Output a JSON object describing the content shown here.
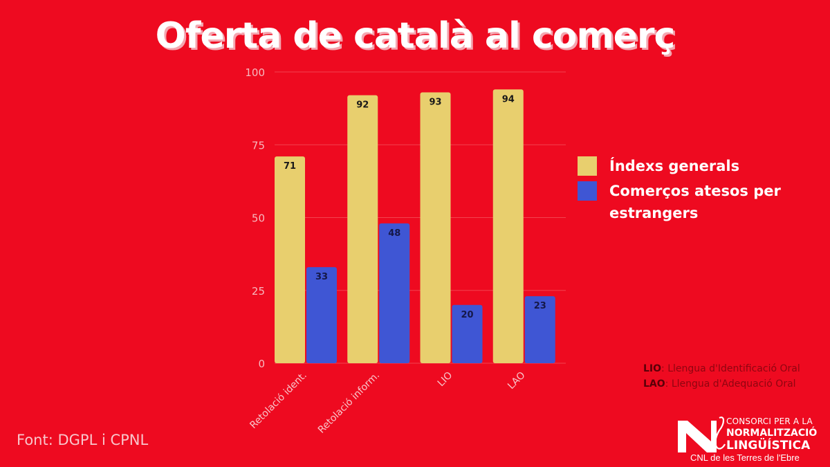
{
  "title": "Oferta de català al comerç",
  "colors": {
    "background": "#ee0a20",
    "series_1": "#e8cf6e",
    "series_2": "#3f56d4"
  },
  "chart_data": {
    "type": "bar",
    "title": "Oferta de català al comerç",
    "categories": [
      "Retolació ident.",
      "Retolació inform.",
      "LIO",
      "LAO"
    ],
    "series": [
      {
        "name": "Índexs generals",
        "values": [
          71,
          92,
          93,
          94
        ]
      },
      {
        "name": "Comerços atesos per estrangers",
        "values": [
          33,
          48,
          20,
          23
        ]
      }
    ],
    "xlabel": "",
    "ylabel": "",
    "ylim": [
      0,
      100
    ],
    "yticks": [
      0,
      25,
      50,
      75,
      100
    ],
    "grid": true,
    "legend_position": "right",
    "data_labels": true
  },
  "legend": [
    {
      "label": "Índexs generals"
    },
    {
      "label": "Comerços atesos per estrangers"
    }
  ],
  "footnotes": [
    {
      "abbr": "LIO",
      "text": ": Llengua d'Identificació Oral"
    },
    {
      "abbr": "LAO",
      "text": ": Llengua d'Adequació Oral"
    }
  ],
  "source": "Font: DGPL i CPNL",
  "logo": {
    "line1": "CONSORCI PER A LA",
    "line2": "NORMALITZACIÓ",
    "line3": "LINGÜÍSTICA",
    "line4": "CNL de les Terres de l'Ebre"
  }
}
